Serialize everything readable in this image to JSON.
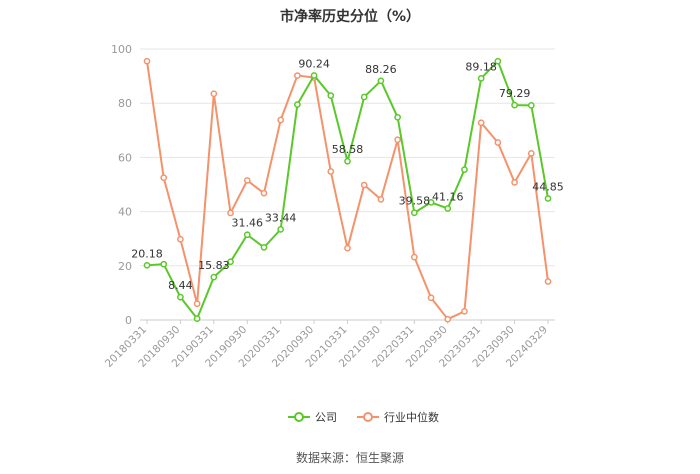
{
  "page": {
    "title": "市净率历史分位（%）",
    "source": "数据来源：恒生聚源"
  },
  "chart_data": {
    "type": "line",
    "title": "市净率历史分位（%）",
    "ylim": [
      0,
      100
    ],
    "yticks": [
      0,
      20,
      40,
      60,
      80,
      100
    ],
    "grid": true,
    "legend_position": "bottom-center",
    "x_tick_labels": [
      "20180331",
      "20180930",
      "20190331",
      "20190930",
      "20200331",
      "20200930",
      "20210331",
      "20210930",
      "20220331",
      "20220930",
      "20230331",
      "20230930",
      "20240329"
    ],
    "x": [
      "20180331",
      "20180630",
      "20180930",
      "20181231",
      "20190331",
      "20190630",
      "20190930",
      "20191231",
      "20200331",
      "20200630",
      "20200930",
      "20201231",
      "20210331",
      "20210630",
      "20210930",
      "20211231",
      "20220331",
      "20220630",
      "20220930",
      "20221231",
      "20230331",
      "20230630",
      "20230930",
      "20231231",
      "20240329"
    ],
    "series": [
      {
        "name": "公司",
        "color": "#5ac829",
        "values": [
          20.18,
          20.6,
          8.44,
          0.5,
          15.83,
          21.5,
          31.46,
          26.8,
          33.44,
          79.5,
          90.24,
          82.8,
          58.58,
          82.3,
          88.26,
          74.8,
          39.58,
          43.4,
          41.16,
          55.5,
          89.18,
          95.5,
          79.29,
          79.2,
          44.85
        ],
        "labels": [
          "20.18",
          "",
          "8.44",
          "",
          "15.83",
          "",
          "31.46",
          "",
          "33.44",
          "",
          "90.24",
          "",
          "58.58",
          "",
          "88.26",
          "",
          "39.58",
          "",
          "41.16",
          "",
          "89.18",
          "",
          "79.29",
          "",
          "44.85"
        ]
      },
      {
        "name": "行业中位数",
        "color": "#f4926b",
        "values": [
          95.5,
          52.5,
          29.8,
          6.0,
          83.5,
          39.5,
          51.5,
          46.8,
          73.8,
          90.2,
          89.5,
          54.8,
          26.5,
          49.8,
          44.5,
          66.5,
          23.2,
          8.2,
          0.3,
          3.2,
          72.8,
          65.5,
          50.8,
          61.5,
          14.2
        ]
      }
    ]
  }
}
